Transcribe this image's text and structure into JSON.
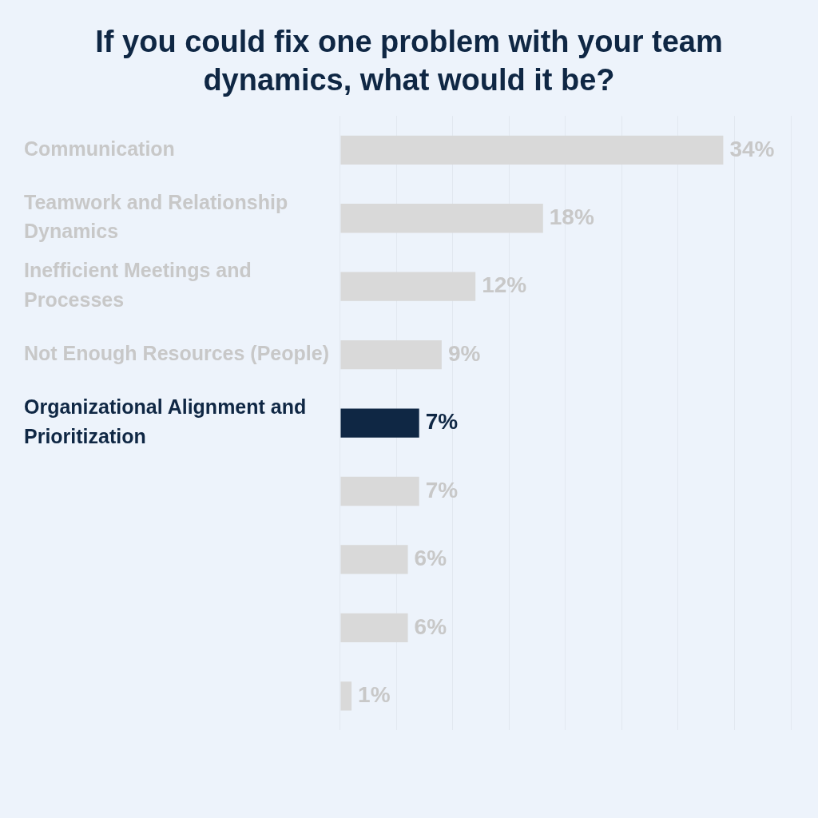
{
  "chart_data": {
    "type": "bar",
    "orientation": "horizontal",
    "title": "If you could fix one problem with your team dynamics, what would it be?",
    "categories": [
      "Communication",
      "Teamwork and Relationship Dynamics",
      "Inefficient Meetings and Processes",
      "Not Enough Resources (People)",
      "Organizational Alignment and Prioritization",
      null,
      null,
      null,
      null
    ],
    "values": [
      34,
      18,
      12,
      9,
      7,
      7,
      6,
      6,
      1
    ],
    "colors": [
      "#d9d9d9",
      "#d9d9d9",
      "#d9d9d9",
      "#d9d9d9",
      "#0f2744",
      "#d9d9d9",
      "#d9d9d9",
      "#d9d9d9",
      "#d9d9d9"
    ],
    "value_labels": [
      "34%",
      "18%",
      "12%",
      "9%",
      "7%",
      "7%",
      "6%",
      "6%",
      "1%"
    ],
    "xlim": [
      0,
      40
    ],
    "xticks": [
      0,
      5,
      10,
      15,
      20,
      25,
      30,
      35,
      40
    ],
    "grid": "x",
    "tick_labels": "y"
  }
}
